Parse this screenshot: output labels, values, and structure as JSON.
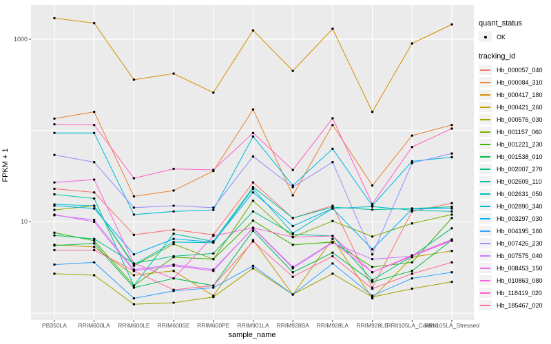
{
  "chart_data": {
    "type": "line",
    "title": "",
    "xlabel": "sample_name",
    "ylabel": "FPKM + 1",
    "y_scale": "log10",
    "grid": "major",
    "panel_bg": "#EBEBEB",
    "gridline_color": "#FFFFFF",
    "point_color": "#000000",
    "y_tick_labels": [
      "1000",
      "10"
    ],
    "y_ticks": [
      1000,
      10
    ],
    "y_gridlines": [
      1,
      10,
      100,
      1000
    ],
    "ylim": [
      0.93,
      2400
    ],
    "legend_position": "right",
    "categories": [
      "PB350LA",
      "RRIM600LA",
      "RRIM600LE",
      "RRIM600SE",
      "RRIM600PE",
      "RRIM901LA",
      "RRIM928BA",
      "RRIM928LA",
      "RRIM928LE",
      "RRII105LA_Control",
      "RRII105LA_Stressed"
    ],
    "series": [
      {
        "name": "Hb_000057_040",
        "color": "#F8766D",
        "values": [
          23,
          21,
          7.2,
          8.2,
          7.2,
          27,
          11,
          15,
          1.9,
          13,
          16
        ]
      },
      {
        "name": "Hb_000084_310",
        "color": "#EA8331",
        "values": [
          135,
          160,
          19,
          22,
          36,
          170,
          19.5,
          115,
          25,
          88,
          115
        ]
      },
      {
        "name": "Hb_000417_180",
        "color": "#D89000",
        "values": [
          1700,
          1500,
          360,
          420,
          260,
          1250,
          450,
          1300,
          160,
          900,
          1450
        ]
      },
      {
        "name": "Hb_000421_260",
        "color": "#C09B00",
        "values": [
          5.6,
          5.3,
          2.6,
          2.9,
          1.55,
          6.3,
          1.6,
          6.5,
          1.45,
          4.1,
          4.8
        ]
      },
      {
        "name": "Hb_000576_030",
        "color": "#A3A500",
        "values": [
          2.7,
          2.6,
          1.25,
          1.3,
          1.5,
          3.1,
          1.6,
          2.7,
          1.5,
          1.85,
          2.2
        ]
      },
      {
        "name": "Hb_001157_060",
        "color": "#7CAE00",
        "values": [
          13.5,
          15,
          3.3,
          5.7,
          3.9,
          17,
          6.8,
          10.2,
          6.9,
          9.6,
          12
        ]
      },
      {
        "name": "Hb_001221_230",
        "color": "#39B600",
        "values": [
          7.6,
          6.2,
          2.0,
          4.1,
          3.9,
          10.3,
          5.6,
          6.0,
          3.2,
          3.6,
          11
        ]
      },
      {
        "name": "Hb_001538_010",
        "color": "#00BB4E",
        "values": [
          5.5,
          5.8,
          1.9,
          2.4,
          2.0,
          8.0,
          2.8,
          4.6,
          2.2,
          2.9,
          6.3
        ]
      },
      {
        "name": "Hb_002007_270",
        "color": "#00BF7D",
        "values": [
          7.1,
          6.5,
          3.5,
          4.2,
          4.5,
          13,
          7.3,
          7.0,
          2.3,
          4.2,
          8.5
        ]
      },
      {
        "name": "Hb_002609_110",
        "color": "#00C1A3",
        "values": [
          20,
          18,
          2.0,
          7.4,
          6.1,
          24,
          11,
          14.5,
          13.6,
          14,
          14.6
        ]
      },
      {
        "name": "Hb_002631_050",
        "color": "#00BFC4",
        "values": [
          15.5,
          15,
          3.4,
          6.0,
          5.9,
          23,
          7.5,
          14,
          14.7,
          13.4,
          13
        ]
      },
      {
        "name": "Hb_002890_340",
        "color": "#00BAE0",
        "values": [
          94,
          94,
          12,
          13,
          13.5,
          86,
          25,
          63,
          15,
          46,
          51
        ]
      },
      {
        "name": "Hb_003297_030",
        "color": "#00B0F6",
        "values": [
          15,
          14,
          4.4,
          6.5,
          6.0,
          21,
          9,
          14,
          5.0,
          13.8,
          14
        ]
      },
      {
        "name": "Hb_004195_160",
        "color": "#35A2FF",
        "values": [
          3.4,
          3.6,
          1.45,
          1.75,
          1.9,
          3.3,
          1.6,
          3.5,
          1.55,
          2.4,
          2.8
        ]
      },
      {
        "name": "Hb_007426_230",
        "color": "#9590FF",
        "values": [
          54,
          45,
          14.3,
          15,
          14.3,
          52,
          24,
          45,
          4.4,
          44,
          56
        ]
      },
      {
        "name": "Hb_007575_040",
        "color": "#C77CFF",
        "values": [
          11.8,
          10.5,
          3.0,
          3.4,
          3.0,
          8.5,
          3.1,
          5.9,
          3.9,
          4.2,
          6.3
        ]
      },
      {
        "name": "Hb_008453_150",
        "color": "#E76BF3",
        "values": [
          12,
          10,
          2.9,
          3.3,
          2.9,
          8.6,
          3.2,
          6.0,
          2.8,
          4.2,
          6.2
        ]
      },
      {
        "name": "Hb_010863_080",
        "color": "#FA62DB",
        "values": [
          27,
          29,
          3.5,
          2.4,
          7.0,
          8.6,
          6.8,
          7.0,
          2.8,
          4.3,
          6.4
        ]
      },
      {
        "name": "Hb_118419_020",
        "color": "#FF61C9",
        "values": [
          117,
          115,
          30,
          38,
          37,
          94,
          37,
          136,
          15.7,
          66,
          105
        ]
      },
      {
        "name": "Hb_185467_020",
        "color": "#FF6A98",
        "values": [
          4.9,
          4.9,
          2.9,
          1.8,
          2.0,
          6.1,
          2.5,
          4.2,
          1.85,
          2.7,
          3.6
        ]
      }
    ],
    "legend": {
      "groups": [
        {
          "title": "quant_status",
          "glyph": "point",
          "items": [
            {
              "label": "OK"
            }
          ]
        },
        {
          "title": "tracking_id",
          "glyph": "line",
          "items_from": "series"
        }
      ]
    }
  }
}
